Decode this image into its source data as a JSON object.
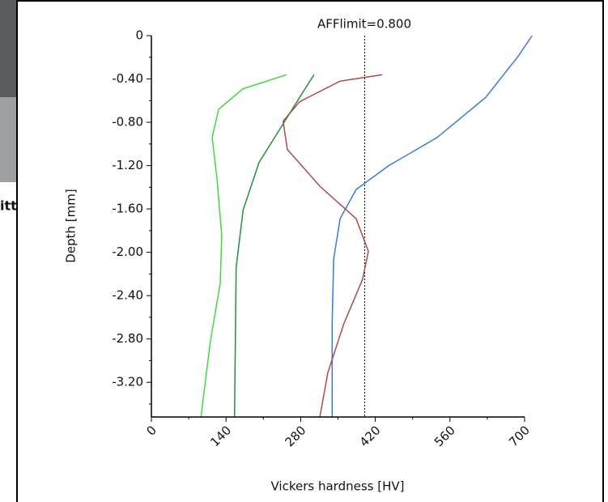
{
  "side_text": "itti",
  "chart_data": {
    "type": "line",
    "xlabel": "Vickers hardness [HV]",
    "ylabel": "Depth [mm]",
    "xlim": [
      0,
      700
    ],
    "ylim": [
      -3.52,
      0
    ],
    "xticks": [
      0,
      140,
      280,
      420,
      560,
      700
    ],
    "xminorticks": [
      70,
      210,
      350,
      490,
      630
    ],
    "yticks": [
      0,
      {
        "value": -0.4,
        "label": "-0.40"
      },
      {
        "value": -0.8,
        "label": "-0.80"
      },
      {
        "value": -1.2,
        "label": "-1.20"
      },
      {
        "value": -1.6,
        "label": "-1.60"
      },
      {
        "value": -2.0,
        "label": "-2.00"
      },
      {
        "value": -2.4,
        "label": "-2.40"
      },
      {
        "value": -2.8,
        "label": "-2.80"
      },
      {
        "value": -3.2,
        "label": "-3.20"
      }
    ],
    "yminorticks": [
      -0.2,
      -0.6,
      -1.0,
      -1.4,
      -1.8,
      -2.2,
      -2.6,
      -3.0,
      -3.4
    ],
    "limit_line": {
      "x": 400,
      "label": "AFFlimit=0.800"
    },
    "series": [
      {
        "color": "#3a7bd5",
        "x": [
          714,
          688,
          627,
          536,
          445,
          384,
          354,
          342,
          339,
          339
        ],
        "values": [
          0,
          -0.19,
          -0.57,
          -0.94,
          -1.2,
          -1.42,
          -1.69,
          -2.06,
          -2.66,
          -3.52
        ]
      },
      {
        "color": "#b04a4a",
        "x": [
          433,
          354,
          278,
          247,
          255,
          316,
          384,
          407,
          396,
          361,
          331,
          316
        ],
        "values": [
          -0.36,
          -0.42,
          -0.61,
          -0.79,
          -1.05,
          -1.39,
          -1.69,
          -1.99,
          -2.25,
          -2.66,
          -3.11,
          -3.52
        ]
      },
      {
        "color": "#2e8b3e",
        "x": [
          305,
          278,
          240,
          202,
          172,
          159,
          156
        ],
        "values": [
          -0.36,
          -0.57,
          -0.87,
          -1.17,
          -1.61,
          -2.14,
          -3.52
        ]
      },
      {
        "color": "#44d444",
        "x": [
          254,
          172,
          126,
          114,
          123,
          132,
          129,
          111,
          93
        ],
        "values": [
          -0.36,
          -0.49,
          -0.68,
          -0.94,
          -1.32,
          -1.84,
          -2.29,
          -2.81,
          -3.52
        ]
      }
    ]
  }
}
